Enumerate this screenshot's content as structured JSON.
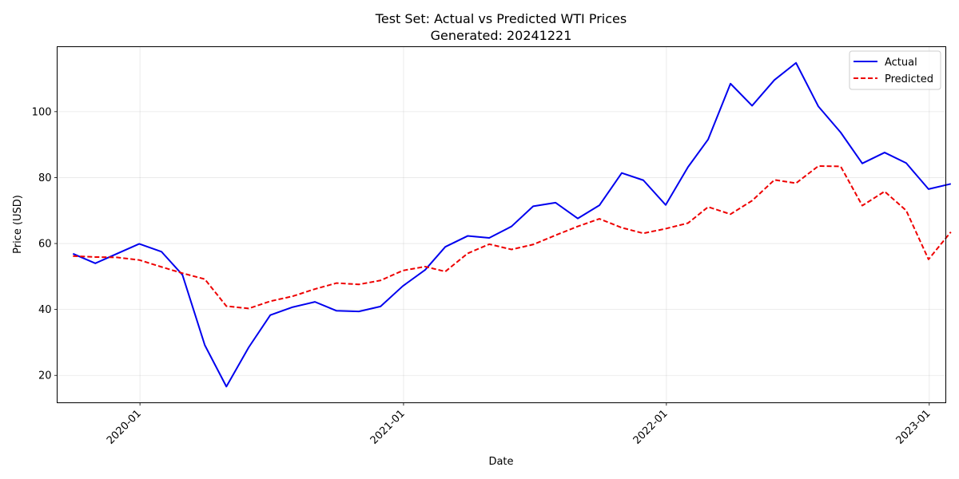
{
  "chart_data": {
    "type": "line",
    "title": "Test Set: Actual vs Predicted WTI Prices",
    "subtitle": "Generated: 20241221",
    "xlabel": "Date",
    "ylabel": "Price (USD)",
    "x": [
      "2019-09-30",
      "2019-10-31",
      "2019-11-30",
      "2019-12-31",
      "2020-01-31",
      "2020-02-29",
      "2020-03-31",
      "2020-04-30",
      "2020-05-31",
      "2020-06-30",
      "2020-07-31",
      "2020-08-31",
      "2020-09-30",
      "2020-10-31",
      "2020-11-30",
      "2020-12-31",
      "2021-01-31",
      "2021-02-28",
      "2021-03-31",
      "2021-04-30",
      "2021-05-31",
      "2021-06-30",
      "2021-07-31",
      "2021-08-31",
      "2021-09-30",
      "2021-10-31",
      "2021-11-30",
      "2021-12-31",
      "2022-01-31",
      "2022-02-28",
      "2022-03-31",
      "2022-04-30",
      "2022-05-31",
      "2022-06-30",
      "2022-07-31",
      "2022-08-31",
      "2022-09-30",
      "2022-10-31",
      "2022-11-30",
      "2022-12-31",
      "2023-01-31"
    ],
    "series": [
      {
        "name": "Actual",
        "color": "#0000ee",
        "style": "solid",
        "values": [
          56.9,
          54.0,
          56.9,
          59.9,
          57.5,
          50.5,
          29.2,
          16.6,
          28.5,
          38.3,
          40.7,
          42.3,
          39.6,
          39.4,
          40.9,
          47.1,
          52.0,
          59.0,
          62.3,
          61.7,
          65.2,
          71.3,
          72.4,
          67.6,
          71.6,
          81.4,
          79.2,
          71.7,
          83.2,
          91.6,
          108.5,
          101.8,
          109.6,
          114.8,
          101.6,
          93.7,
          84.3,
          87.6,
          84.4,
          76.5,
          78.1
        ]
      },
      {
        "name": "Predicted",
        "color": "#ee0000",
        "style": "dashed",
        "values": [
          56.2,
          55.9,
          55.8,
          55.0,
          52.9,
          51.0,
          49.2,
          41.0,
          40.3,
          42.5,
          44.0,
          46.2,
          48.0,
          47.6,
          48.8,
          51.8,
          53.0,
          51.5,
          57.0,
          59.8,
          58.2,
          59.7,
          62.5,
          65.2,
          67.5,
          64.8,
          63.1,
          64.5,
          66.2,
          71.1,
          68.9,
          73.0,
          79.3,
          78.3,
          83.5,
          83.4,
          71.5,
          75.8,
          70.0,
          55.2,
          63.5
        ]
      }
    ],
    "xticks": [
      {
        "date": "2020-01-01",
        "label": "2020-01"
      },
      {
        "date": "2021-01-01",
        "label": "2021-01"
      },
      {
        "date": "2022-01-01",
        "label": "2022-01"
      },
      {
        "date": "2023-01-01",
        "label": "2023-01"
      }
    ],
    "yticks": [
      20,
      40,
      60,
      80,
      100
    ],
    "xlim": [
      "2019-09-08",
      "2023-01-24"
    ],
    "ylim": [
      11.7,
      119.7
    ],
    "grid": true,
    "legend_position": "top-right"
  }
}
